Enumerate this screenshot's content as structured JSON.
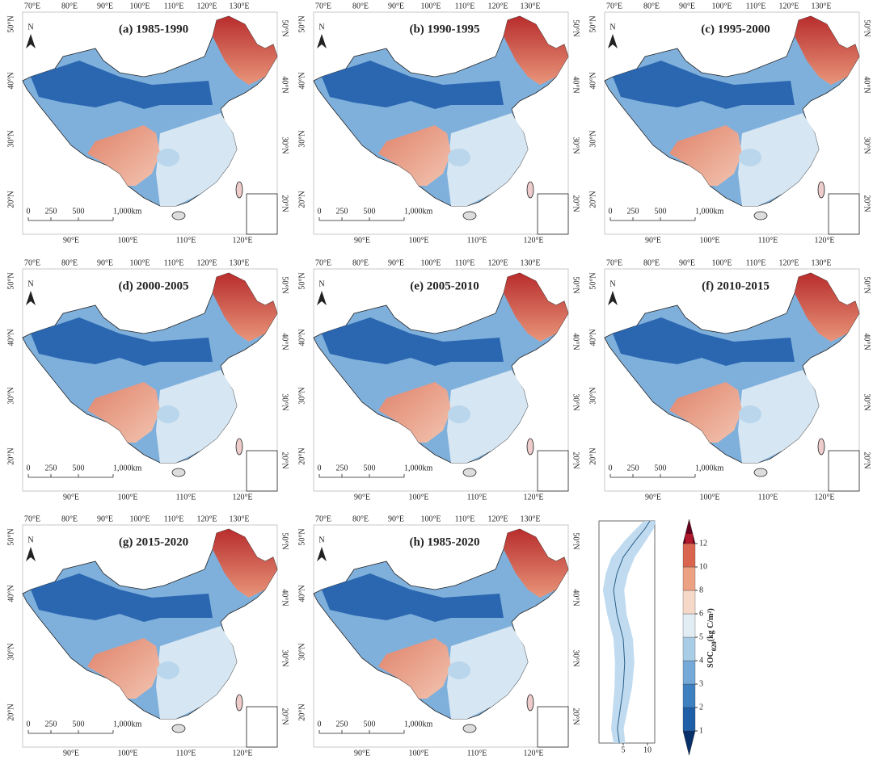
{
  "panels": [
    {
      "title": "(a) 1985-1990"
    },
    {
      "title": "(b) 1990-1995"
    },
    {
      "title": "(c) 1995-2000"
    },
    {
      "title": "(d) 2000-2005"
    },
    {
      "title": "(e) 2005-2010"
    },
    {
      "title": "(f) 2010-2015"
    },
    {
      "title": "(g) 2015-2020"
    },
    {
      "title": "(h) 1985-2020"
    }
  ],
  "map_axes": {
    "lon_top": [
      "70°E",
      "80°E",
      "90°E",
      "100°E",
      "110°E",
      "120°E",
      "130°E"
    ],
    "lon_bottom": [
      "90°E",
      "100°E",
      "110°E",
      "120°E"
    ],
    "lat_left": [
      "50°N",
      "40°N",
      "30°N",
      "20°N"
    ],
    "lat_right": [
      "50°N",
      "40°N",
      "30°N",
      "20°N"
    ]
  },
  "north": "N",
  "scale_bar": {
    "labels": [
      "0",
      "250",
      "500",
      "1,000km"
    ]
  },
  "chart_data": {
    "type": "line",
    "latitude": [
      18,
      20.3,
      22.9,
      26.7,
      30.6,
      34.4,
      38.3,
      42.1,
      44.7,
      47.3,
      49.9,
      51.8,
      53
    ],
    "values": [
      4.2,
      3.8,
      4.3,
      5,
      5.3,
      5,
      3.7,
      3,
      3.7,
      5,
      7.5,
      9.5,
      10.5
    ],
    "error": [
      1.2,
      1.3,
      1.5,
      1.8,
      2,
      2,
      2,
      2.2,
      2.3,
      2.4,
      2.2,
      1.8,
      1.2
    ],
    "color": "#2b5f86",
    "band_color": "#b9d7ee",
    "xlim": [
      0,
      11.5
    ],
    "xticks": [
      5,
      10
    ],
    "ylim": [
      18,
      53
    ]
  },
  "colorbar": {
    "ticks": [
      1,
      2,
      3,
      4,
      5,
      6,
      8,
      10,
      12
    ],
    "colors": [
      "#08306b",
      "#1f5fa8",
      "#3f80c1",
      "#74a9d8",
      "#aacde7",
      "#e1ecf3",
      "#f6d8c8",
      "#eca183",
      "#d9654f",
      "#b2182b",
      "#67001f"
    ],
    "label": {
      "main": "SOC",
      "sub": "020",
      "unit": "(kg C/m²)"
    }
  }
}
